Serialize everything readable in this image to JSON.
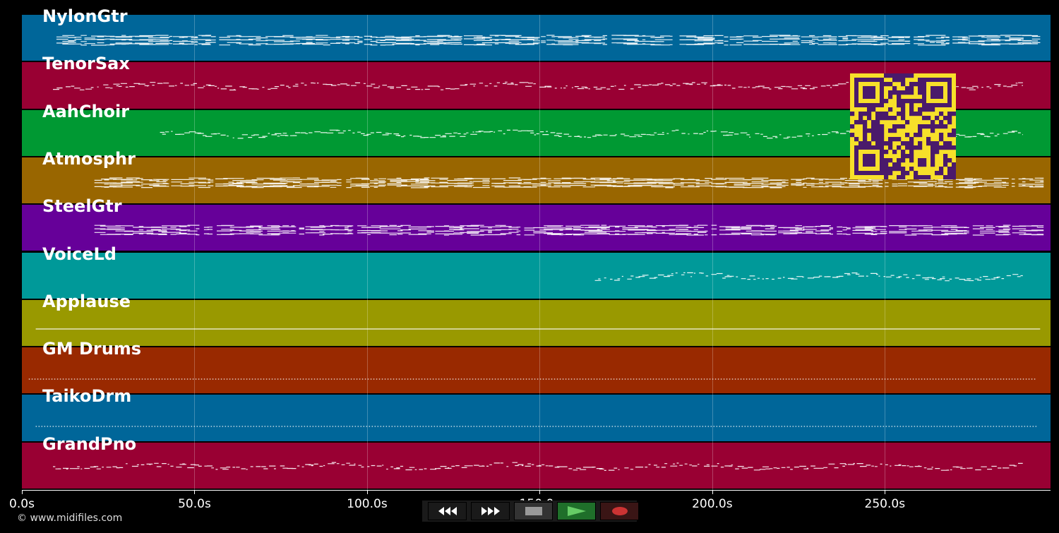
{
  "tracks": [
    {
      "name": "NylonGtr",
      "color": "#006699",
      "density": 3,
      "start": 10,
      "end": 295,
      "pattern": "dense"
    },
    {
      "name": "TenorSax",
      "color": "#990033",
      "density": 1,
      "start": 9,
      "end": 290,
      "pattern": "melody"
    },
    {
      "name": "AahChoir",
      "color": "#009933",
      "density": 2,
      "start": 40,
      "end": 290,
      "pattern": "melody"
    },
    {
      "name": "Atmosphr",
      "color": "#996600",
      "density": 3,
      "start": 21,
      "end": 296,
      "pattern": "dense"
    },
    {
      "name": "SteelGtr",
      "color": "#660099",
      "density": 3,
      "start": 21,
      "end": 296,
      "pattern": "dense"
    },
    {
      "name": "VoiceLd",
      "color": "#009999",
      "density": 1,
      "start": 166,
      "end": 290,
      "pattern": "melody"
    },
    {
      "name": "Applause",
      "color": "#999900",
      "density": 1,
      "start": 4,
      "end": 295,
      "pattern": "line"
    },
    {
      "name": "GM Drums",
      "color": "#992900",
      "density": 1,
      "start": 2,
      "end": 294,
      "pattern": "dots"
    },
    {
      "name": "TaikoDrm",
      "color": "#006699",
      "density": 1,
      "start": 4,
      "end": 294,
      "pattern": "dots"
    },
    {
      "name": "GrandPno",
      "color": "#990033",
      "density": 1,
      "start": 9,
      "end": 290,
      "pattern": "melody"
    }
  ],
  "timeline": {
    "max_seconds": 298,
    "ticks": [
      {
        "value": 0,
        "label": "0.0s"
      },
      {
        "value": 50,
        "label": "50.0s"
      },
      {
        "value": 100,
        "label": "100.0s"
      },
      {
        "value": 150,
        "label": "150.0s"
      },
      {
        "value": 200,
        "label": "200.0s"
      },
      {
        "value": 250,
        "label": "250.0s"
      }
    ]
  },
  "copyright": "© www.midifiles.com",
  "transport": {
    "buttons": [
      {
        "name": "rewind-button",
        "icon": "rewind-icon",
        "bg": "#111111"
      },
      {
        "name": "fast-forward-button",
        "icon": "fast-forward-icon",
        "bg": "#111111"
      },
      {
        "name": "stop-button",
        "icon": "stop-icon",
        "bg": "#333333"
      },
      {
        "name": "play-button",
        "icon": "play-icon",
        "bg": "#1f6f2a"
      },
      {
        "name": "record-button",
        "icon": "record-icon",
        "bg": "#3a1515"
      }
    ]
  },
  "qr": {
    "fg": "#4a1a6b",
    "bg": "#f7e02a"
  }
}
